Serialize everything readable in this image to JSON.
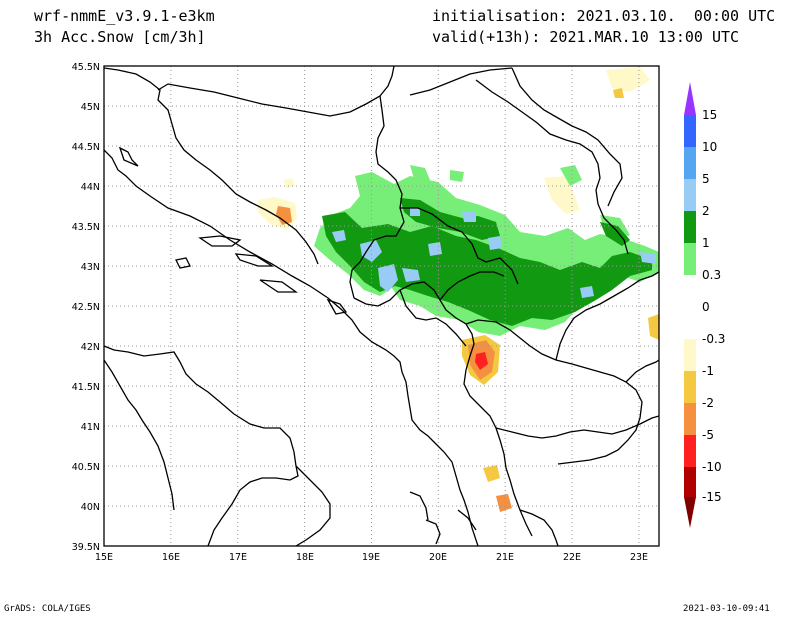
{
  "header": {
    "model": "wrf-nmmE_v3.9.1-e3km",
    "field": "3h Acc.Snow [cm/3h]",
    "init": "initialisation: 2021.03.10.  00:00 UTC",
    "valid": "valid(+13h): 2021.MAR.10 13:00 UTC"
  },
  "map": {
    "lon_range": [
      15,
      23.3
    ],
    "lat_range": [
      39.5,
      45.5
    ],
    "lon_ticks": [
      "15E",
      "16E",
      "17E",
      "18E",
      "19E",
      "20E",
      "21E",
      "22E",
      "23E"
    ],
    "lat_ticks": [
      "45.5N",
      "45N",
      "44.5N",
      "44N",
      "43.5N",
      "43N",
      "42.5N",
      "42N",
      "41.5N",
      "41N",
      "40.5N",
      "40N",
      "39.5N"
    ],
    "grid": true
  },
  "colorbar": {
    "labels": [
      "15",
      "10",
      "5",
      "2",
      "1",
      "0.3",
      "0",
      "-0.3",
      "-1",
      "-2",
      "-5",
      "-10",
      "-15"
    ],
    "colors": {
      "c_15": "#9933ff",
      "c_10_15": "#3366ff",
      "c_5_10": "#55a6f0",
      "c_2_5": "#99ccf5",
      "c_1_2": "#119911",
      "c_03_1": "#77ee77",
      "c_0_03": "#ffffff",
      "c_m03_0": "#ffffff",
      "c_m1_m03": "#fff8c8",
      "c_m2_m1": "#f5c842",
      "c_m5_m2": "#f59040",
      "c_m10_m5": "#ff2020",
      "c_m15_m10": "#b00000",
      "c_m15": "#800000"
    }
  },
  "footer": {
    "left": "GrADS: COLA/IGES",
    "right": "2021-03-10-09:41"
  }
}
